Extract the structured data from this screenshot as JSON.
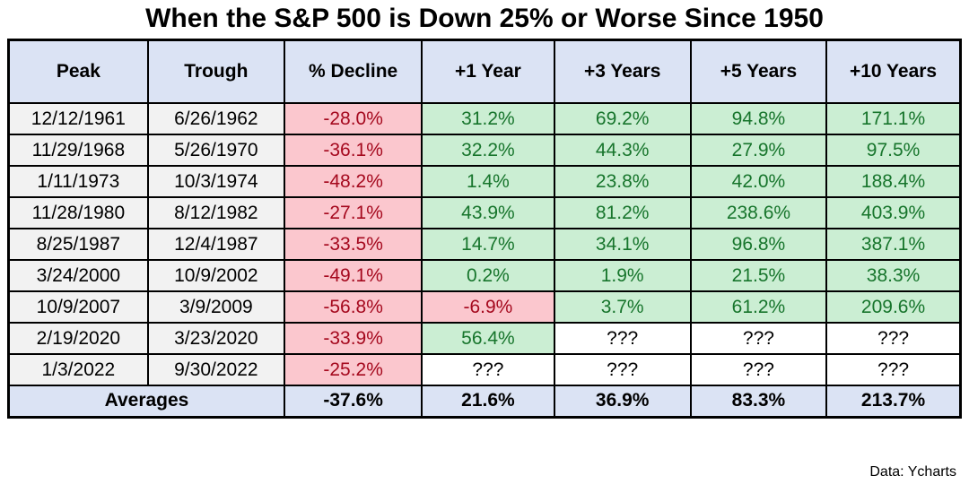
{
  "title": "When the S&P 500 is Down 25% or Worse Since 1950",
  "source_credit": "Data: Ycharts",
  "colors": {
    "header_fill": "#dbe3f4",
    "date_fill": "#f2f2f2",
    "negative_fill": "#fbc7ce",
    "negative_text": "#a5091e",
    "positive_fill": "#cbeed3",
    "positive_text": "#17752c",
    "border": "#000000",
    "background": "#ffffff"
  },
  "chart_data": {
    "type": "table",
    "title": "When the S&P 500 is Down 25% or Worse Since 1950",
    "columns": [
      "Peak",
      "Trough",
      "% Decline",
      "+1 Year",
      "+3 Years",
      "+5 Years",
      "+10 Years"
    ],
    "rows": [
      [
        "12/12/1961",
        "6/26/1962",
        "-28.0%",
        "31.2%",
        "69.2%",
        "94.8%",
        "171.1%"
      ],
      [
        "11/29/1968",
        "5/26/1970",
        "-36.1%",
        "32.2%",
        "44.3%",
        "27.9%",
        "97.5%"
      ],
      [
        "1/11/1973",
        "10/3/1974",
        "-48.2%",
        "1.4%",
        "23.8%",
        "42.0%",
        "188.4%"
      ],
      [
        "11/28/1980",
        "8/12/1982",
        "-27.1%",
        "43.9%",
        "81.2%",
        "238.6%",
        "403.9%"
      ],
      [
        "8/25/1987",
        "12/4/1987",
        "-33.5%",
        "14.7%",
        "34.1%",
        "96.8%",
        "387.1%"
      ],
      [
        "3/24/2000",
        "10/9/2002",
        "-49.1%",
        "0.2%",
        "1.9%",
        "21.5%",
        "38.3%"
      ],
      [
        "10/9/2007",
        "3/9/2009",
        "-56.8%",
        "-6.9%",
        "3.7%",
        "61.2%",
        "209.6%"
      ],
      [
        "2/19/2020",
        "3/23/2020",
        "-33.9%",
        "56.4%",
        "???",
        "???",
        "???"
      ],
      [
        "1/3/2022",
        "9/30/2022",
        "-25.2%",
        "???",
        "???",
        "???",
        "???"
      ]
    ],
    "averages": {
      "label": "Averages",
      "values": [
        "-37.6%",
        "21.6%",
        "36.9%",
        "83.3%",
        "213.7%"
      ]
    }
  }
}
